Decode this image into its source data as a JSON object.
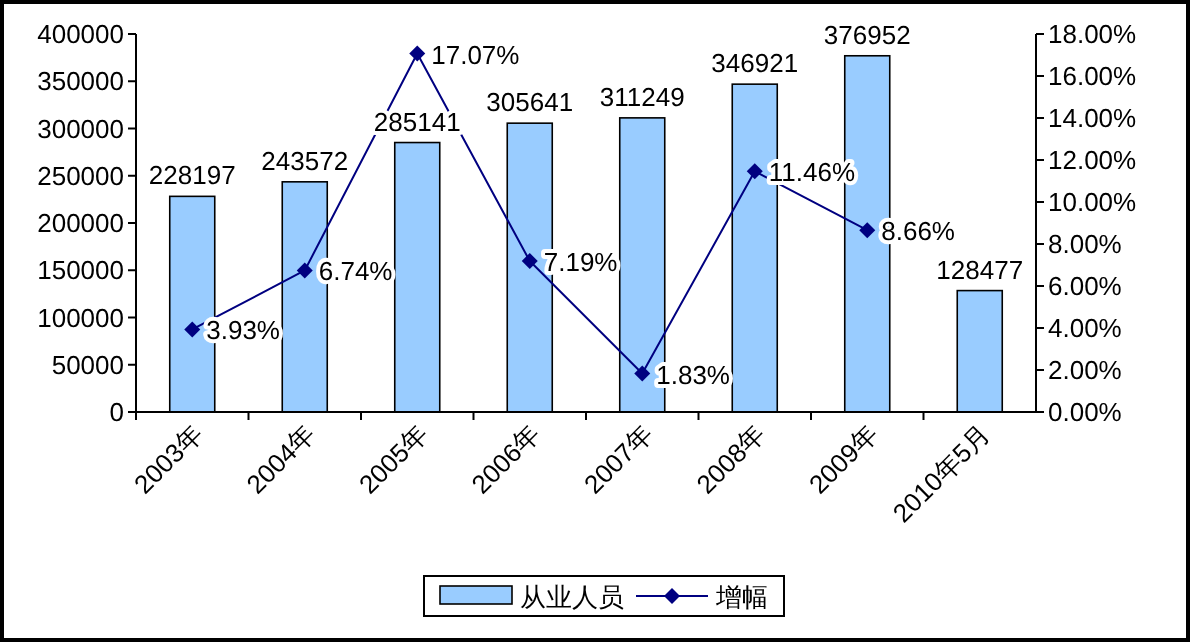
{
  "chart_data": {
    "type": "bar",
    "categories": [
      "2003年",
      "2004年",
      "2005年",
      "2006年",
      "2007年",
      "2008年",
      "2009年",
      "2010年5月"
    ],
    "series": [
      {
        "name": "从业人员",
        "color": "#99ccff",
        "values": [
          228197,
          243572,
          285141,
          305641,
          311249,
          346921,
          376952,
          128477
        ],
        "value_labels": [
          "228197",
          "243572",
          "285141",
          "305641",
          "311249",
          "346921",
          "376952",
          "128477"
        ]
      },
      {
        "name": "增幅",
        "type": "line",
        "axis": "y2",
        "color": "#000080",
        "marker": "diamond",
        "values": [
          3.93,
          6.74,
          17.07,
          7.19,
          1.83,
          11.46,
          8.66,
          null
        ],
        "value_labels": [
          "3.93%",
          "6.74%",
          "17.07%",
          "7.19%",
          "1.83%",
          "11.46%",
          "8.66%",
          null
        ]
      }
    ],
    "ylim": [
      0,
      400000
    ],
    "yticks": [
      0,
      50000,
      100000,
      150000,
      200000,
      250000,
      300000,
      350000,
      400000
    ],
    "y2lim": [
      0,
      18
    ],
    "y2ticks": [
      {
        "value": 0,
        "label": "0.00%"
      },
      {
        "value": 2,
        "label": "2.00%"
      },
      {
        "value": 4,
        "label": "4.00%"
      },
      {
        "value": 6,
        "label": "6.00%"
      },
      {
        "value": 8,
        "label": "8.00%"
      },
      {
        "value": 10,
        "label": "10.00%"
      },
      {
        "value": 12,
        "label": "12.00%"
      },
      {
        "value": 14,
        "label": "14.00%"
      },
      {
        "value": 16,
        "label": "16.00%"
      },
      {
        "value": 18,
        "label": "18.00%"
      }
    ],
    "grid": false,
    "legend": "bottom"
  }
}
